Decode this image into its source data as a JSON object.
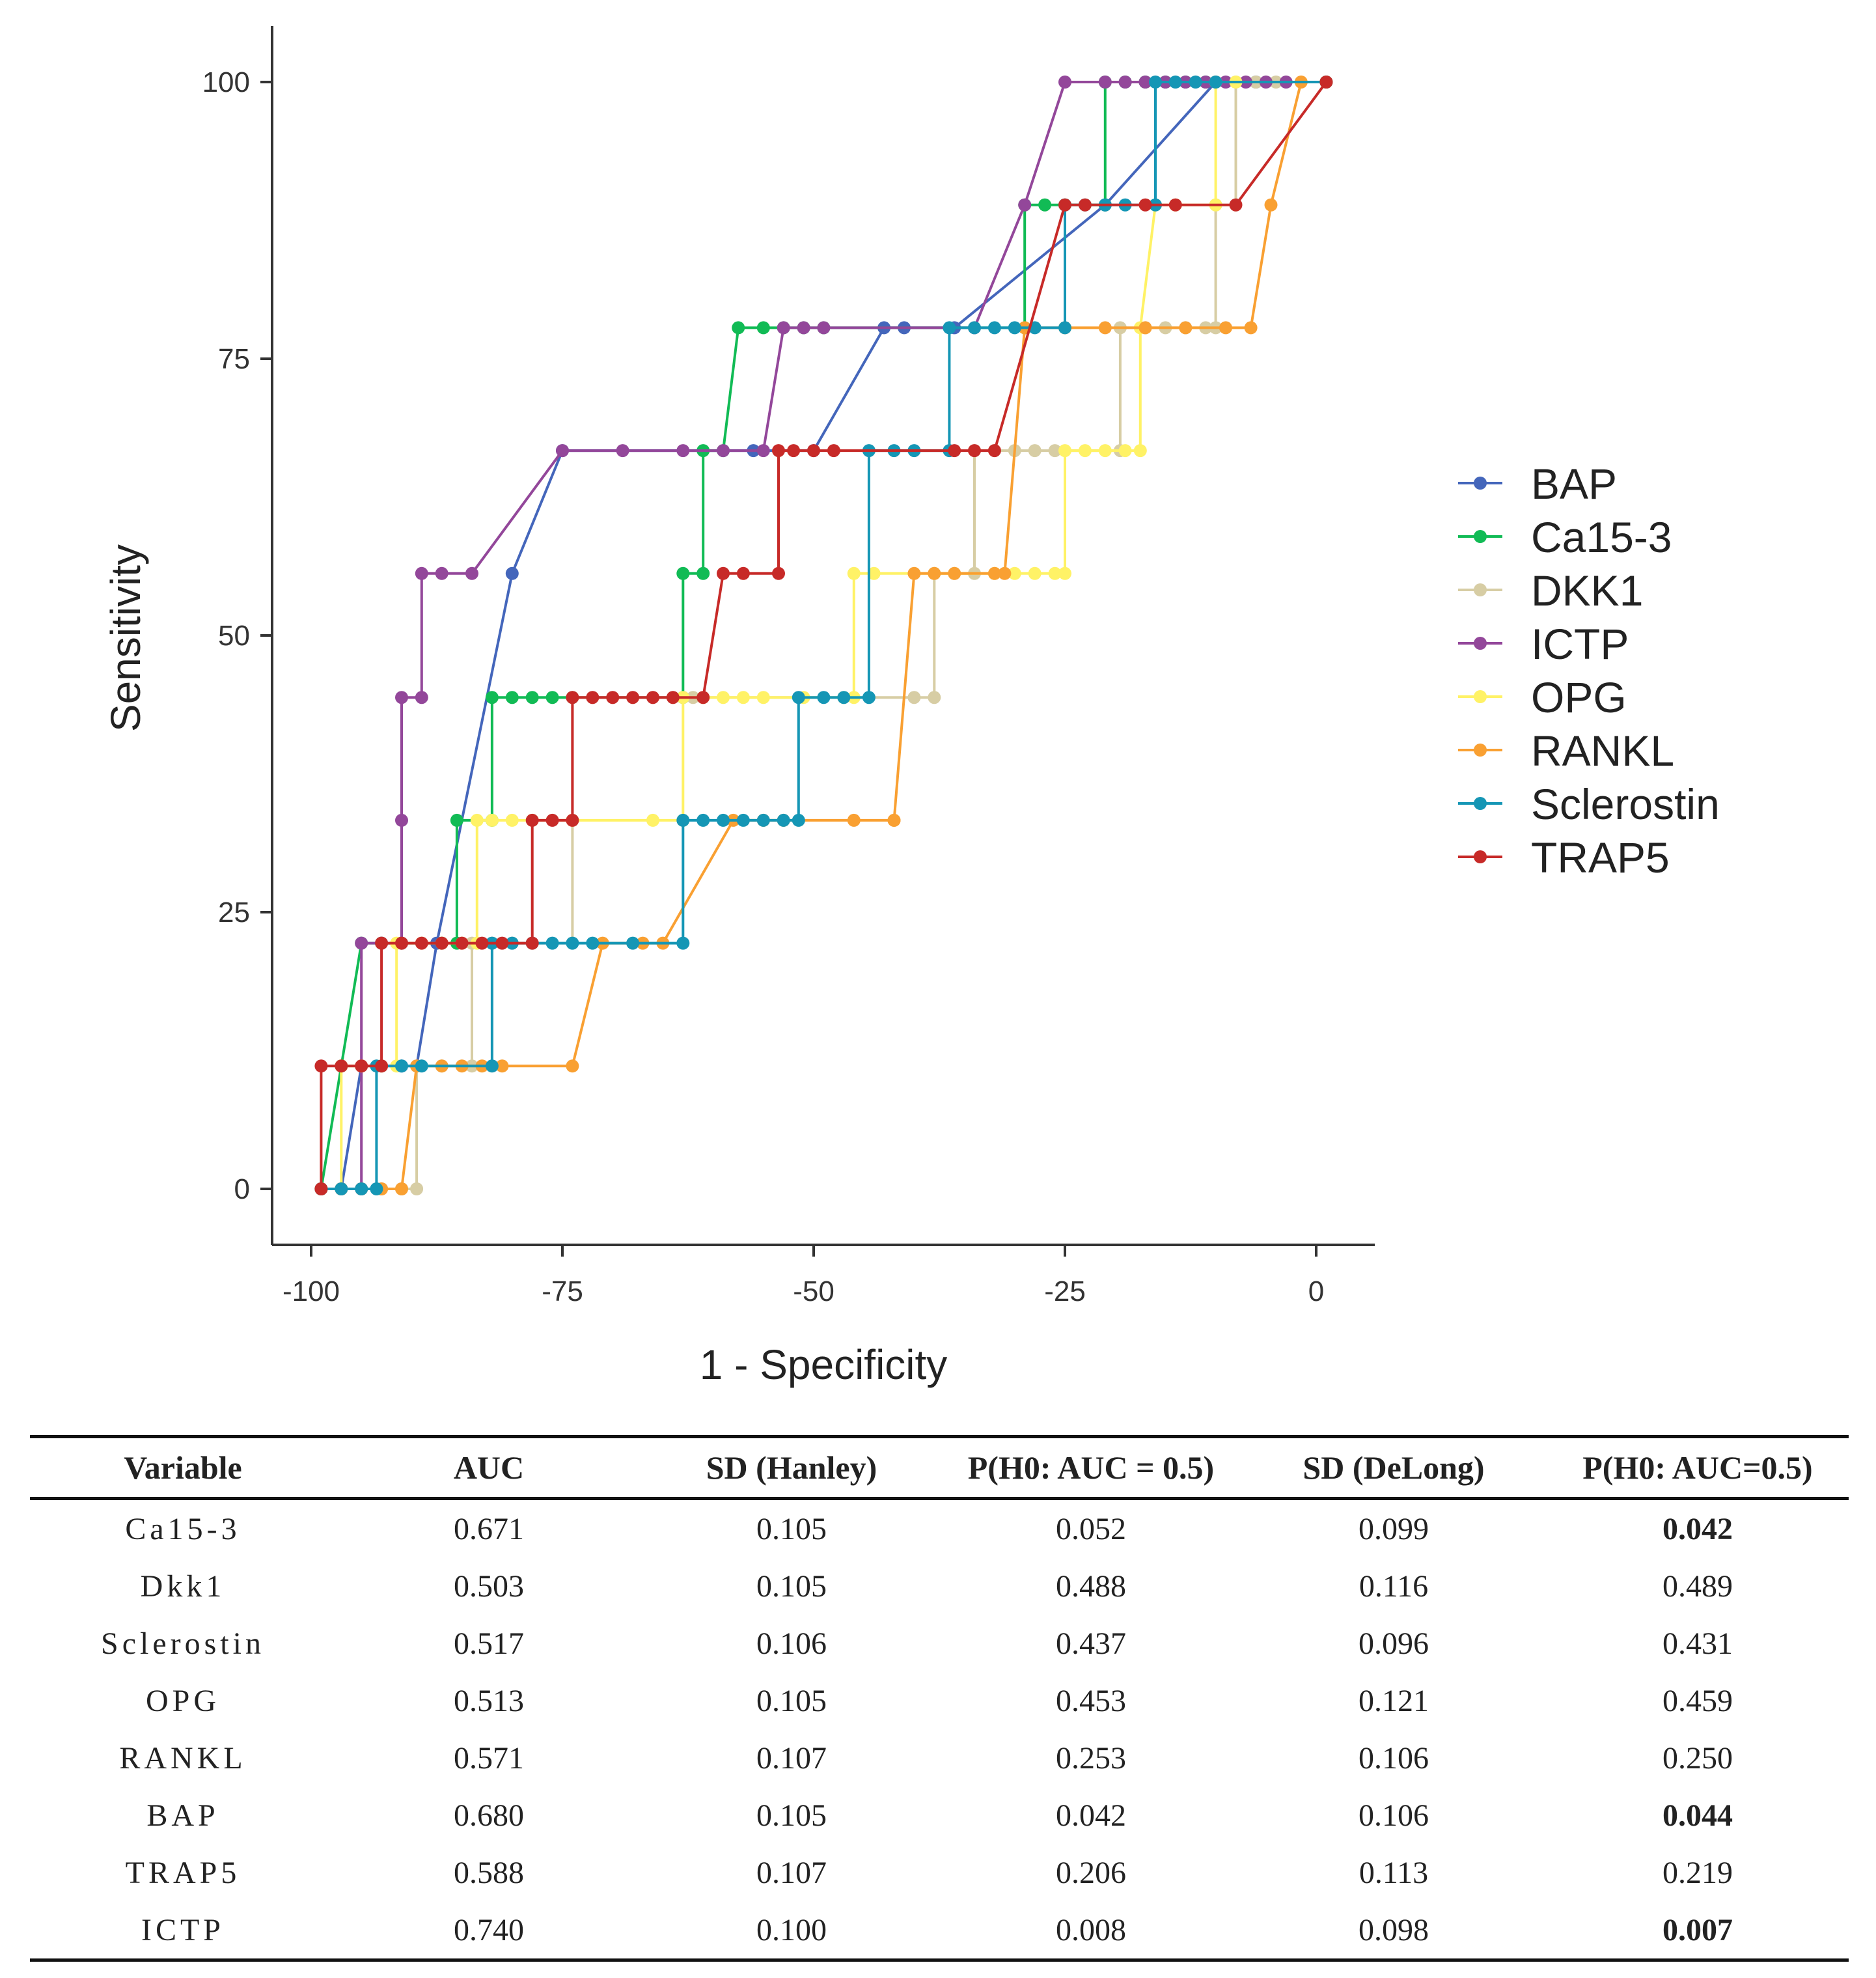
{
  "chart_data": {
    "type": "line",
    "title": "",
    "xlabel": "1 - Specificity",
    "ylabel": "Sensitivity",
    "xlim": [
      -104,
      6
    ],
    "ylim": [
      -5,
      105
    ],
    "x_ticks": [
      -100,
      -75,
      -50,
      -25,
      0
    ],
    "y_ticks": [
      0,
      25,
      50,
      75,
      100
    ],
    "grid": false,
    "legend_position": "right",
    "series": [
      {
        "name": "BAP",
        "color": "#4466BB",
        "points": [
          [
            -99,
            0
          ],
          [
            -97,
            0
          ],
          [
            -95,
            11.1
          ],
          [
            -93,
            11.1
          ],
          [
            -91,
            11.1
          ],
          [
            -89.5,
            11.1
          ],
          [
            -87.5,
            22.2
          ],
          [
            -80,
            55.6
          ],
          [
            -75,
            66.7
          ],
          [
            -56,
            66.7
          ],
          [
            -50,
            66.7
          ],
          [
            -43,
            77.8
          ],
          [
            -41,
            77.8
          ],
          [
            -36,
            77.8
          ],
          [
            -21,
            88.9
          ],
          [
            -10,
            100
          ],
          [
            -6,
            100
          ],
          [
            1,
            100
          ]
        ]
      },
      {
        "name": "Ca15-3",
        "color": "#11BB55",
        "points": [
          [
            -99,
            0
          ],
          [
            -97,
            11.1
          ],
          [
            -95,
            22.2
          ],
          [
            -93,
            22.2
          ],
          [
            -91,
            22.2
          ],
          [
            -87,
            22.2
          ],
          [
            -85.5,
            22.2
          ],
          [
            -85.5,
            33.3
          ],
          [
            -82,
            33.3
          ],
          [
            -82,
            44.4
          ],
          [
            -80,
            44.4
          ],
          [
            -78,
            44.4
          ],
          [
            -76,
            44.4
          ],
          [
            -74,
            44.4
          ],
          [
            -63,
            44.4
          ],
          [
            -63,
            55.6
          ],
          [
            -61,
            55.6
          ],
          [
            -61,
            66.7
          ],
          [
            -59,
            66.7
          ],
          [
            -57.5,
            77.8
          ],
          [
            -55,
            77.8
          ],
          [
            -53,
            77.8
          ],
          [
            -51,
            77.8
          ],
          [
            -49,
            77.8
          ],
          [
            -29,
            77.8
          ],
          [
            -29,
            88.9
          ],
          [
            -27,
            88.9
          ],
          [
            -25,
            88.9
          ],
          [
            -21,
            88.9
          ],
          [
            -21,
            100
          ],
          [
            -19,
            100
          ],
          [
            -17,
            100
          ],
          [
            -15,
            100
          ],
          [
            -13,
            100
          ],
          [
            -11,
            100
          ],
          [
            1,
            100
          ]
        ]
      },
      {
        "name": "DKK1",
        "color": "#D7CDA4",
        "points": [
          [
            -99,
            0
          ],
          [
            -97,
            0
          ],
          [
            -95,
            0
          ],
          [
            -93,
            0
          ],
          [
            -91,
            0
          ],
          [
            -89.5,
            0
          ],
          [
            -89.5,
            11.1
          ],
          [
            -87,
            11.1
          ],
          [
            -84,
            11.1
          ],
          [
            -84,
            22.2
          ],
          [
            -82,
            22.2
          ],
          [
            -80,
            22.2
          ],
          [
            -78,
            22.2
          ],
          [
            -74,
            22.2
          ],
          [
            -74,
            44.4
          ],
          [
            -72,
            44.4
          ],
          [
            -70,
            44.4
          ],
          [
            -68,
            44.4
          ],
          [
            -66,
            44.4
          ],
          [
            -64,
            44.4
          ],
          [
            -62,
            44.4
          ],
          [
            -40,
            44.4
          ],
          [
            -38,
            44.4
          ],
          [
            -38,
            55.6
          ],
          [
            -36,
            55.6
          ],
          [
            -34,
            55.6
          ],
          [
            -34,
            66.7
          ],
          [
            -32,
            66.7
          ],
          [
            -30,
            66.7
          ],
          [
            -28,
            66.7
          ],
          [
            -26,
            66.7
          ],
          [
            -19.5,
            66.7
          ],
          [
            -19.5,
            77.8
          ],
          [
            -17,
            77.8
          ],
          [
            -15,
            77.8
          ],
          [
            -13,
            77.8
          ],
          [
            -11,
            77.8
          ],
          [
            -10,
            77.8
          ],
          [
            -10,
            88.9
          ],
          [
            -8,
            88.9
          ],
          [
            -8,
            100
          ],
          [
            -6,
            100
          ],
          [
            -4,
            100
          ],
          [
            1,
            100
          ]
        ]
      },
      {
        "name": "ICTP",
        "color": "#93479A",
        "points": [
          [
            -99,
            0
          ],
          [
            -97,
            0
          ],
          [
            -95,
            0
          ],
          [
            -95,
            11.1
          ],
          [
            -95,
            22.2
          ],
          [
            -93,
            22.2
          ],
          [
            -91,
            22.2
          ],
          [
            -91,
            33.3
          ],
          [
            -91,
            44.4
          ],
          [
            -89,
            44.4
          ],
          [
            -89,
            55.6
          ],
          [
            -87,
            55.6
          ],
          [
            -84,
            55.6
          ],
          [
            -75,
            66.7
          ],
          [
            -69,
            66.7
          ],
          [
            -63,
            66.7
          ],
          [
            -59,
            66.7
          ],
          [
            -55,
            66.7
          ],
          [
            -53,
            77.8
          ],
          [
            -51,
            77.8
          ],
          [
            -49,
            77.8
          ],
          [
            -34,
            77.8
          ],
          [
            -29,
            88.9
          ],
          [
            -25,
            100
          ],
          [
            -21,
            100
          ],
          [
            -19,
            100
          ],
          [
            -17,
            100
          ],
          [
            -15,
            100
          ],
          [
            -13,
            100
          ],
          [
            -11,
            100
          ],
          [
            -9,
            100
          ],
          [
            -7,
            100
          ],
          [
            -5,
            100
          ],
          [
            -3,
            100
          ],
          [
            1,
            100
          ]
        ]
      },
      {
        "name": "OPG",
        "color": "#FFF266",
        "points": [
          [
            -99,
            0
          ],
          [
            -97,
            0
          ],
          [
            -97,
            11.1
          ],
          [
            -95,
            11.1
          ],
          [
            -93,
            11.1
          ],
          [
            -91.5,
            11.1
          ],
          [
            -91.5,
            22.2
          ],
          [
            -89,
            22.2
          ],
          [
            -87,
            22.2
          ],
          [
            -85,
            22.2
          ],
          [
            -83.5,
            22.2
          ],
          [
            -83.5,
            33.3
          ],
          [
            -82,
            33.3
          ],
          [
            -80,
            33.3
          ],
          [
            -78,
            33.3
          ],
          [
            -74,
            33.3
          ],
          [
            -66,
            33.3
          ],
          [
            -63,
            33.3
          ],
          [
            -63,
            44.4
          ],
          [
            -61,
            44.4
          ],
          [
            -59,
            44.4
          ],
          [
            -57,
            44.4
          ],
          [
            -55,
            44.4
          ],
          [
            -51,
            44.4
          ],
          [
            -47,
            44.4
          ],
          [
            -46,
            44.4
          ],
          [
            -46,
            55.6
          ],
          [
            -44,
            55.6
          ],
          [
            -32,
            55.6
          ],
          [
            -30,
            55.6
          ],
          [
            -28,
            55.6
          ],
          [
            -26,
            55.6
          ],
          [
            -25,
            55.6
          ],
          [
            -25,
            66.7
          ],
          [
            -23,
            66.7
          ],
          [
            -21,
            66.7
          ],
          [
            -19,
            66.7
          ],
          [
            -17.5,
            66.7
          ],
          [
            -17.5,
            77.8
          ],
          [
            -16,
            88.9
          ],
          [
            -14,
            88.9
          ],
          [
            -10,
            88.9
          ],
          [
            -10,
            100
          ],
          [
            -8,
            100
          ],
          [
            1,
            100
          ]
        ]
      },
      {
        "name": "RANKL",
        "color": "#F9A032",
        "points": [
          [
            -99,
            0
          ],
          [
            -97,
            0
          ],
          [
            -95,
            0
          ],
          [
            -93,
            0
          ],
          [
            -91,
            0
          ],
          [
            -89.5,
            11.1
          ],
          [
            -87,
            11.1
          ],
          [
            -85,
            11.1
          ],
          [
            -83,
            11.1
          ],
          [
            -81,
            11.1
          ],
          [
            -74,
            11.1
          ],
          [
            -71,
            22.2
          ],
          [
            -67,
            22.2
          ],
          [
            -65,
            22.2
          ],
          [
            -58,
            33.3
          ],
          [
            -55,
            33.3
          ],
          [
            -53,
            33.3
          ],
          [
            -46,
            33.3
          ],
          [
            -42,
            33.3
          ],
          [
            -42,
            33.3
          ],
          [
            -40,
            55.6
          ],
          [
            -38,
            55.6
          ],
          [
            -36,
            55.6
          ],
          [
            -32,
            55.6
          ],
          [
            -31,
            55.6
          ],
          [
            -29,
            77.8
          ],
          [
            -25,
            77.8
          ],
          [
            -21,
            77.8
          ],
          [
            -17,
            77.8
          ],
          [
            -13,
            77.8
          ],
          [
            -9,
            77.8
          ],
          [
            -6.5,
            77.8
          ],
          [
            -4.5,
            88.9
          ],
          [
            -1.5,
            100
          ],
          [
            1,
            100
          ]
        ]
      },
      {
        "name": "Sclerostin",
        "color": "#1596B5",
        "points": [
          [
            -99,
            0
          ],
          [
            -97,
            0
          ],
          [
            -95,
            0
          ],
          [
            -93.5,
            0
          ],
          [
            -93.5,
            11.1
          ],
          [
            -91,
            11.1
          ],
          [
            -89,
            11.1
          ],
          [
            -82,
            11.1
          ],
          [
            -82,
            22.2
          ],
          [
            -80,
            22.2
          ],
          [
            -78,
            22.2
          ],
          [
            -76,
            22.2
          ],
          [
            -74,
            22.2
          ],
          [
            -72,
            22.2
          ],
          [
            -68,
            22.2
          ],
          [
            -63,
            22.2
          ],
          [
            -63,
            33.3
          ],
          [
            -61,
            33.3
          ],
          [
            -59,
            33.3
          ],
          [
            -57,
            33.3
          ],
          [
            -55,
            33.3
          ],
          [
            -53,
            33.3
          ],
          [
            -51.5,
            33.3
          ],
          [
            -51.5,
            44.4
          ],
          [
            -49,
            44.4
          ],
          [
            -47,
            44.4
          ],
          [
            -44.5,
            44.4
          ],
          [
            -44.5,
            66.7
          ],
          [
            -42,
            66.7
          ],
          [
            -40,
            66.7
          ],
          [
            -36.5,
            66.7
          ],
          [
            -36.5,
            77.8
          ],
          [
            -34,
            77.8
          ],
          [
            -32,
            77.8
          ],
          [
            -30,
            77.8
          ],
          [
            -28,
            77.8
          ],
          [
            -25,
            77.8
          ],
          [
            -25,
            88.9
          ],
          [
            -23,
            88.9
          ],
          [
            -21,
            88.9
          ],
          [
            -19,
            88.9
          ],
          [
            -16,
            88.9
          ],
          [
            -16,
            100
          ],
          [
            -14,
            100
          ],
          [
            -12,
            100
          ],
          [
            -10,
            100
          ],
          [
            1,
            100
          ]
        ]
      },
      {
        "name": "TRAP5",
        "color": "#C72A28",
        "points": [
          [
            -99,
            0
          ],
          [
            -99,
            11.1
          ],
          [
            -97,
            11.1
          ],
          [
            -95,
            11.1
          ],
          [
            -93,
            11.1
          ],
          [
            -93,
            22.2
          ],
          [
            -91,
            22.2
          ],
          [
            -89,
            22.2
          ],
          [
            -87,
            22.2
          ],
          [
            -85,
            22.2
          ],
          [
            -83,
            22.2
          ],
          [
            -81,
            22.2
          ],
          [
            -78,
            22.2
          ],
          [
            -78,
            33.3
          ],
          [
            -76,
            33.3
          ],
          [
            -74,
            33.3
          ],
          [
            -74,
            44.4
          ],
          [
            -72,
            44.4
          ],
          [
            -70,
            44.4
          ],
          [
            -68,
            44.4
          ],
          [
            -66,
            44.4
          ],
          [
            -64,
            44.4
          ],
          [
            -61,
            44.4
          ],
          [
            -59,
            55.6
          ],
          [
            -57,
            55.6
          ],
          [
            -53.5,
            55.6
          ],
          [
            -53.5,
            66.7
          ],
          [
            -52,
            66.7
          ],
          [
            -50,
            66.7
          ],
          [
            -48,
            66.7
          ],
          [
            -36,
            66.7
          ],
          [
            -34,
            66.7
          ],
          [
            -32,
            66.7
          ],
          [
            -25,
            88.9
          ],
          [
            -23,
            88.9
          ],
          [
            -17,
            88.9
          ],
          [
            -14,
            88.9
          ],
          [
            -8,
            88.9
          ],
          [
            1,
            100
          ]
        ]
      }
    ]
  },
  "table": {
    "headers": [
      "Variable",
      "AUC",
      "SD (Hanley)",
      "P(H0: AUC = 0.5)",
      "SD (DeLong)",
      "P(H0: AUC=0.5)"
    ],
    "rows": [
      [
        "Ca15-3",
        "0.671",
        "0.105",
        "0.052",
        "0.099",
        "0.042"
      ],
      [
        "Dkk1",
        "0.503",
        "0.105",
        "0.488",
        "0.116",
        "0.489"
      ],
      [
        "Sclerostin",
        "0.517",
        "0.106",
        "0.437",
        "0.096",
        "0.431"
      ],
      [
        "OPG",
        "0.513",
        "0.105",
        "0.453",
        "0.121",
        "0.459"
      ],
      [
        "RANKL",
        "0.571",
        "0.107",
        "0.253",
        "0.106",
        "0.250"
      ],
      [
        "BAP",
        "0.680",
        "0.105",
        "0.042",
        "0.106",
        "0.044"
      ],
      [
        "TRAP5",
        "0.588",
        "0.107",
        "0.206",
        "0.113",
        "0.219"
      ],
      [
        "ICTP",
        "0.740",
        "0.100",
        "0.008",
        "0.098",
        "0.007"
      ]
    ],
    "bold_last_column_rows": [
      0,
      5,
      7
    ]
  }
}
